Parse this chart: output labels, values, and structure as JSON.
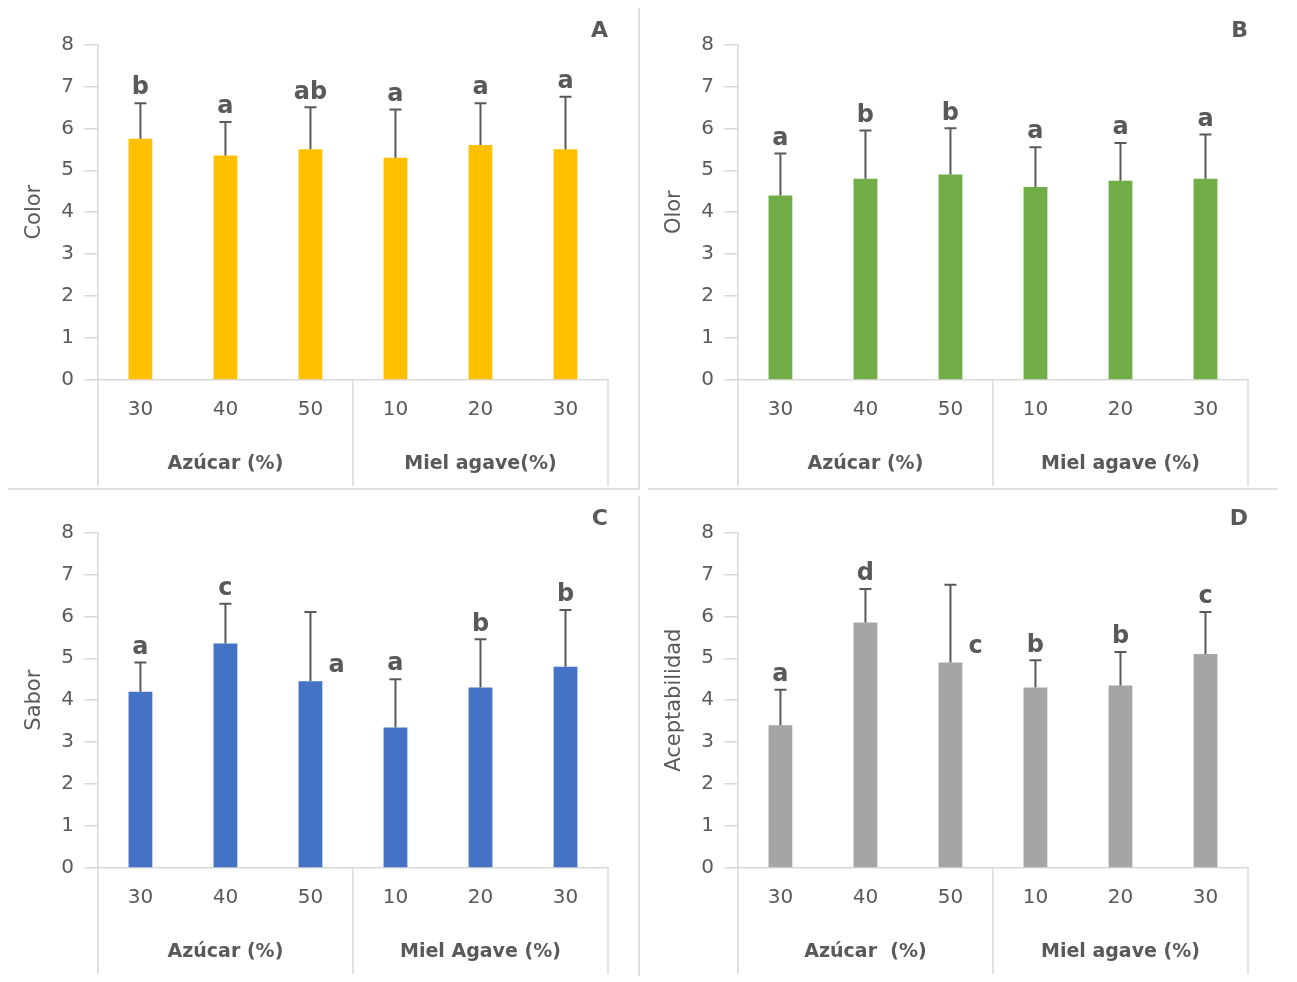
{
  "chart_data": [
    {
      "type": "bar",
      "title": "A",
      "ylabel": "Color",
      "categories": [
        "30",
        "40",
        "50",
        "10",
        "20",
        "30"
      ],
      "values": [
        5.75,
        5.35,
        5.5,
        5.3,
        5.6,
        5.5
      ],
      "errors": [
        [
          5.75,
          6.6
        ],
        [
          5.35,
          6.15
        ],
        [
          5.5,
          6.5
        ],
        [
          5.3,
          6.45
        ],
        [
          5.6,
          6.6
        ],
        [
          5.5,
          6.75
        ]
      ],
      "value_labels": [
        "b",
        "a",
        "ab",
        "a",
        "a",
        "a"
      ],
      "color": "#ffc000",
      "ylim": [
        0,
        8
      ],
      "yticks": [
        0,
        1,
        2,
        3,
        4,
        5,
        6,
        7,
        8
      ],
      "grid": false,
      "annotations": [
        "Azúcar (%)",
        "Miel agave(%)"
      ]
    },
    {
      "type": "bar",
      "title": "B",
      "ylabel": "Olor",
      "categories": [
        "30",
        "40",
        "50",
        "10",
        "20",
        "30"
      ],
      "values": [
        4.4,
        4.8,
        4.9,
        4.6,
        4.75,
        4.8
      ],
      "errors": [
        [
          4.4,
          5.4
        ],
        [
          4.8,
          5.95
        ],
        [
          4.9,
          6.0
        ],
        [
          4.6,
          5.55
        ],
        [
          4.75,
          5.65
        ],
        [
          4.8,
          5.85
        ]
      ],
      "value_labels": [
        "a",
        "b",
        "b",
        "a",
        "a",
        "a"
      ],
      "color": "#70ad47",
      "ylim": [
        0,
        8
      ],
      "yticks": [
        0,
        1,
        2,
        3,
        4,
        5,
        6,
        7,
        8
      ],
      "grid": false,
      "annotations": [
        "Azúcar (%)",
        "Miel agave (%)"
      ]
    },
    {
      "type": "bar",
      "title": "C",
      "ylabel": "Sabor",
      "categories": [
        "30",
        "40",
        "50",
        "10",
        "20",
        "30"
      ],
      "values": [
        4.2,
        5.35,
        4.45,
        3.35,
        4.3,
        4.8
      ],
      "errors": [
        [
          4.2,
          4.9
        ],
        [
          5.35,
          6.3
        ],
        [
          4.45,
          6.1
        ],
        [
          3.35,
          4.5
        ],
        [
          4.3,
          5.45
        ],
        [
          4.8,
          6.15
        ]
      ],
      "value_labels": [
        "a",
        "c",
        "a",
        "a",
        "b",
        "b"
      ],
      "color": "#4472c4",
      "ylim": [
        0,
        8
      ],
      "yticks": [
        0,
        1,
        2,
        3,
        4,
        5,
        6,
        7,
        8
      ],
      "grid": false,
      "annotations": [
        "Azúcar (%)",
        "Miel Agave (%)"
      ]
    },
    {
      "type": "bar",
      "title": "D",
      "ylabel": "Aceptabilidad",
      "categories": [
        "30",
        "40",
        "50",
        "10",
        "20",
        "30"
      ],
      "values": [
        3.4,
        5.85,
        4.9,
        4.3,
        4.35,
        5.1
      ],
      "errors": [
        [
          3.4,
          4.25
        ],
        [
          5.85,
          6.65
        ],
        [
          4.9,
          6.75
        ],
        [
          4.3,
          4.95
        ],
        [
          4.35,
          5.15
        ],
        [
          5.1,
          6.1
        ]
      ],
      "value_labels": [
        "a",
        "d",
        "c",
        "b",
        "b",
        "c"
      ],
      "color": "#a5a5a5",
      "ylim": [
        0,
        8
      ],
      "yticks": [
        0,
        1,
        2,
        3,
        4,
        5,
        6,
        7,
        8
      ],
      "grid": false,
      "annotations": [
        "Azúcar  (%)",
        "Miel agave (%)"
      ]
    }
  ]
}
